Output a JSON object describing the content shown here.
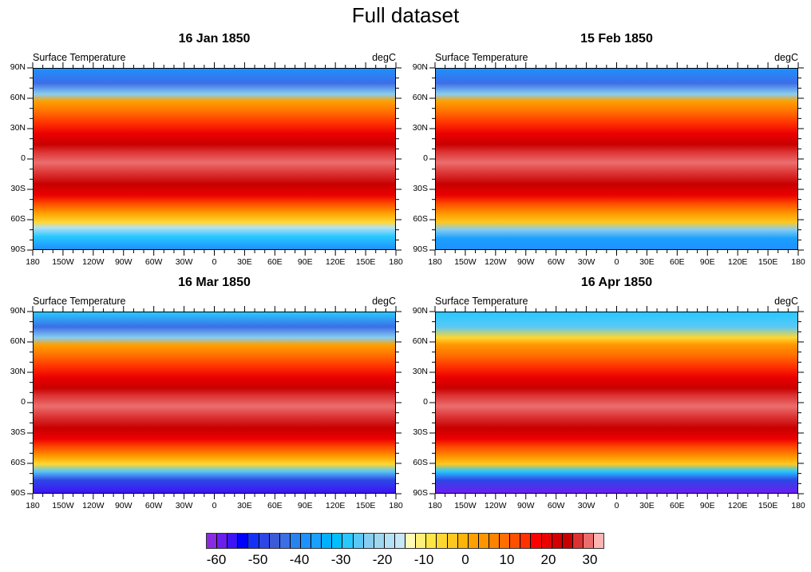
{
  "title": "Full dataset",
  "panels": [
    {
      "title": "16 Jan 1850",
      "left_string": "Surface Temperature",
      "right_string": "degC",
      "season": "jan"
    },
    {
      "title": "15 Feb 1850",
      "left_string": "Surface Temperature",
      "right_string": "degC",
      "season": "feb"
    },
    {
      "title": "16 Mar 1850",
      "left_string": "Surface Temperature",
      "right_string": "degC",
      "season": "mar"
    },
    {
      "title": "16 Apr 1850",
      "left_string": "Surface Temperature",
      "right_string": "degC",
      "season": "apr"
    }
  ],
  "x_ticks": [
    "180",
    "150W",
    "120W",
    "90W",
    "60W",
    "30W",
    "0",
    "30E",
    "60E",
    "90E",
    "120E",
    "150E",
    "180"
  ],
  "y_ticks": [
    "90N",
    "60N",
    "30N",
    "0",
    "30S",
    "60S",
    "90S"
  ],
  "colorbar": {
    "labels": [
      "-60",
      "-50",
      "-40",
      "-30",
      "-20",
      "-10",
      "0",
      "10",
      "20",
      "30"
    ],
    "colors": [
      "#8a2be2",
      "#6a1ef0",
      "#3c14f5",
      "#0000ff",
      "#1432f5",
      "#2d46e6",
      "#3c5ad7",
      "#3c6ee6",
      "#2882f0",
      "#1e90ff",
      "#1aa0ff",
      "#00b0ff",
      "#00bfff",
      "#28c8ff",
      "#5ac8f5",
      "#87cdf0",
      "#a0d7f0",
      "#b4e1f5",
      "#c8e6f5",
      "#fffab4",
      "#fff078",
      "#ffe646",
      "#ffd732",
      "#ffc81e",
      "#ffb40a",
      "#ffa000",
      "#ff9600",
      "#ff8200",
      "#ff6e00",
      "#ff5000",
      "#ff3200",
      "#ff0000",
      "#eb0000",
      "#d20000",
      "#c80000",
      "#dc3232",
      "#eb6e6e",
      "#ffb4b4"
    ]
  }
}
